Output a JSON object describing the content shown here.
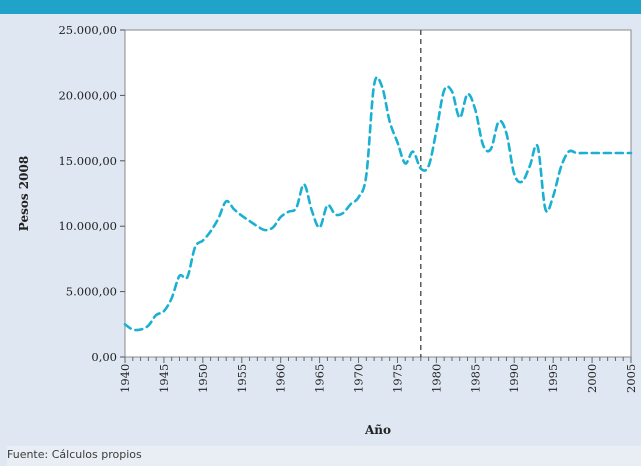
{
  "source_note": "Fuente: Cálculos propios",
  "chart_data": {
    "type": "line",
    "title": "",
    "xlabel": "Año",
    "ylabel": "Pesos 2008",
    "xlim": [
      1940,
      2005
    ],
    "ylim": [
      0,
      25000
    ],
    "y_ticks": [
      "0,00",
      "5.000,00",
      "10.000,00",
      "15.000,00",
      "20.000,00",
      "25.000,00"
    ],
    "x_ticks": [
      "1940",
      "1945",
      "1950",
      "1955",
      "1960",
      "1965",
      "1970",
      "1975",
      "1980",
      "1985",
      "1990",
      "1995",
      "2000",
      "2005"
    ],
    "vertical_marker_x": 1978,
    "series": [
      {
        "color": "#1ab0d4",
        "style": "dashed",
        "x": [
          1940,
          1941,
          1942,
          1943,
          1944,
          1945,
          1946,
          1947,
          1948,
          1949,
          1950,
          1951,
          1952,
          1953,
          1954,
          1955,
          1956,
          1957,
          1958,
          1959,
          1960,
          1961,
          1962,
          1963,
          1964,
          1965,
          1966,
          1967,
          1968,
          1969,
          1970,
          1971,
          1972,
          1973,
          1974,
          1975,
          1976,
          1977,
          1978,
          1979,
          1980,
          1981,
          1982,
          1983,
          1984,
          1985,
          1986,
          1987,
          1988,
          1989,
          1990,
          1991,
          1992,
          1993,
          1994,
          1995,
          1996,
          1997,
          1998,
          1999,
          2000,
          2001,
          2002,
          2003,
          2004,
          2005
        ],
        "y": [
          2500,
          2100,
          2100,
          2400,
          3200,
          3500,
          4500,
          6200,
          6100,
          8400,
          8900,
          9600,
          10600,
          11900,
          11300,
          10800,
          10400,
          10000,
          9700,
          9900,
          10700,
          11100,
          11400,
          13200,
          11200,
          9900,
          11600,
          10900,
          11000,
          11700,
          12200,
          13900,
          20800,
          20700,
          18000,
          16400,
          14800,
          15700,
          14400,
          14600,
          17300,
          20400,
          20300,
          18300,
          20100,
          18900,
          16200,
          15900,
          18000,
          17100,
          14000,
          13400,
          14600,
          16100,
          11300,
          12300,
          14500,
          15700,
          15600,
          15600,
          15600,
          15600,
          15600,
          15600,
          15600,
          15600
        ]
      }
    ]
  }
}
